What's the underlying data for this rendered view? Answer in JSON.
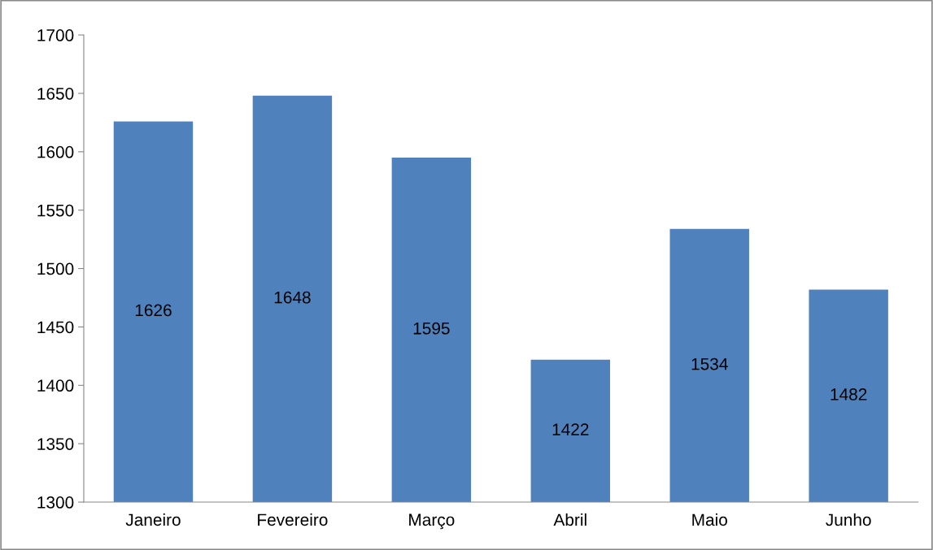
{
  "chart_data": {
    "type": "bar",
    "categories": [
      "Janeiro",
      "Fevereiro",
      "Março",
      "Abril",
      "Maio",
      "Junho"
    ],
    "values": [
      1626,
      1648,
      1595,
      1422,
      1534,
      1482
    ],
    "color": "#4f81bd",
    "ylim": [
      1300,
      1700
    ],
    "yticks": [
      1300,
      1350,
      1400,
      1450,
      1500,
      1550,
      1600,
      1650,
      1700
    ],
    "data_labels": true,
    "grid": false,
    "legend": false
  }
}
